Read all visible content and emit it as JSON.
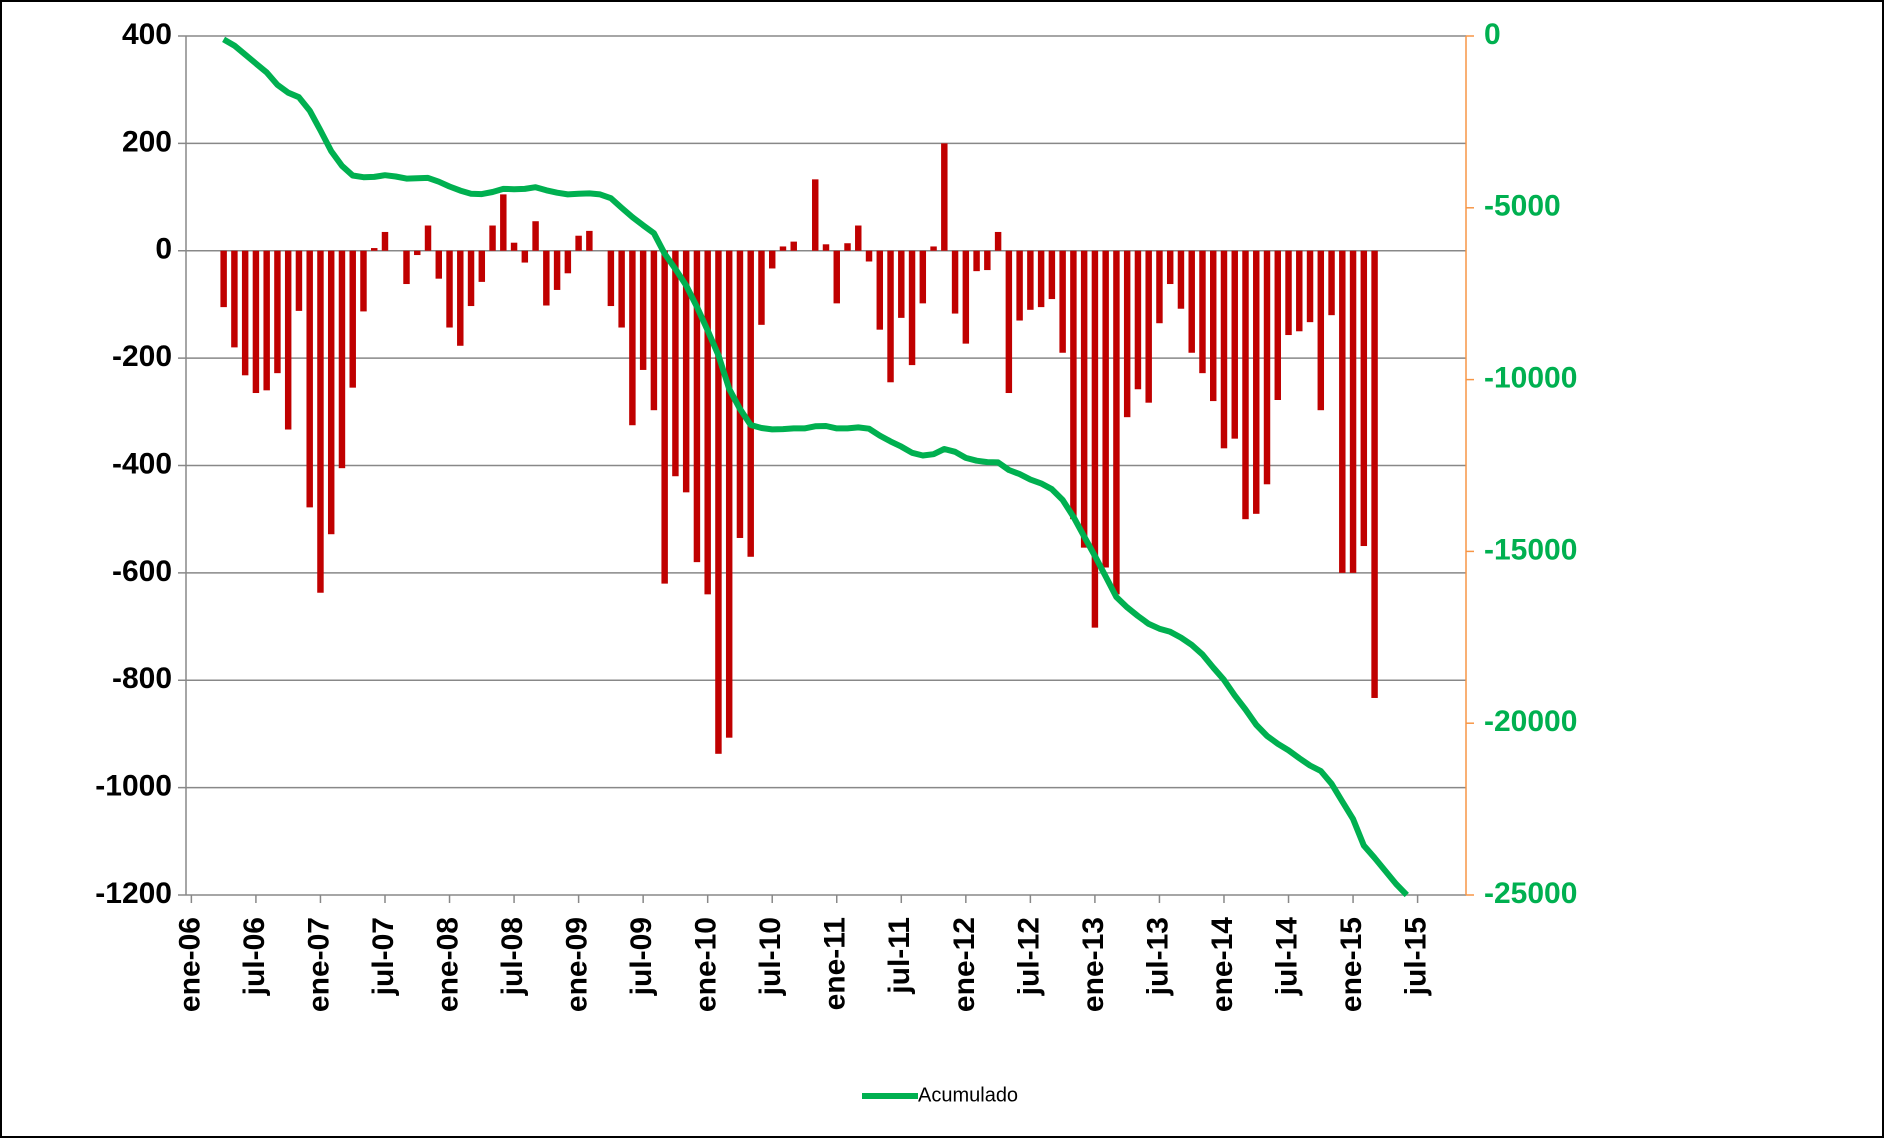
{
  "chart_data": {
    "type": "bar",
    "categories": [
      "ene-06",
      null,
      null,
      null,
      null,
      null,
      "jul-06",
      null,
      null,
      null,
      null,
      null,
      "ene-07",
      null,
      null,
      null,
      null,
      null,
      "jul-07",
      null,
      null,
      null,
      null,
      null,
      "ene-08",
      null,
      null,
      null,
      null,
      null,
      "jul-08",
      null,
      null,
      null,
      null,
      null,
      "ene-09",
      null,
      null,
      null,
      null,
      null,
      "jul-09",
      null,
      null,
      null,
      null,
      null,
      "ene-10",
      null,
      null,
      null,
      null,
      null,
      "jul-10",
      null,
      null,
      null,
      null,
      null,
      "ene-11",
      null,
      null,
      null,
      null,
      null,
      "jul-11",
      null,
      null,
      null,
      null,
      null,
      "ene-12",
      null,
      null,
      null,
      null,
      null,
      "jul-12",
      null,
      null,
      null,
      null,
      null,
      "ene-13",
      null,
      null,
      null,
      null,
      null,
      "jul-13",
      null,
      null,
      null,
      null,
      null,
      "ene-14",
      null,
      null,
      null,
      null,
      null,
      "jul-14",
      null,
      null,
      null,
      null,
      null,
      "ene-15",
      null,
      null,
      null,
      null,
      null,
      "jul-15",
      null,
      null,
      null,
      null
    ],
    "series": [
      {
        "type": "bar",
        "color": "#c00000",
        "values": [
          null,
          null,
          null,
          -105,
          -180,
          -232,
          -265,
          -260,
          -228,
          -333,
          -112,
          -478,
          -637,
          -528,
          -405,
          -255,
          -113,
          5,
          35,
          0,
          -62,
          -8,
          47,
          -52,
          -143,
          -177,
          -103,
          -58,
          47,
          105,
          15,
          -22,
          55,
          -102,
          -73,
          -42,
          28,
          37,
          0,
          -103,
          -143,
          -325,
          -222,
          -297,
          -620,
          -420,
          -450,
          -580,
          -640,
          -937,
          -907,
          -535,
          -570,
          -138,
          -33,
          8,
          17,
          0,
          133,
          12,
          -98,
          14,
          47,
          -20,
          -147,
          -245,
          -125,
          -213,
          -98,
          8,
          200,
          -117,
          -173,
          -38,
          -36,
          35,
          -265,
          -130,
          -110,
          -105,
          -90,
          -190,
          -500,
          -553,
          -702,
          -590,
          -640,
          -310,
          -258,
          -283,
          -135,
          -62,
          -108,
          -190,
          -228,
          -280,
          -368,
          -350,
          -500,
          -490,
          -435,
          -278,
          -157,
          -150,
          -133,
          -297,
          -120,
          -600,
          -600,
          -550,
          -833,
          null,
          null,
          null,
          null,
          null,
          null,
          null,
          null
        ]
      },
      {
        "type": "line",
        "name": "Acumulado",
        "color": "#00b050",
        "axis": "y2",
        "values": [
          null,
          null,
          null,
          -100,
          -280,
          -540,
          -800,
          -1060,
          -1420,
          -1650,
          -1780,
          -2170,
          -2750,
          -3350,
          -3780,
          -4060,
          -4110,
          -4100,
          -4050,
          -4090,
          -4150,
          -4140,
          -4130,
          -4240,
          -4380,
          -4500,
          -4590,
          -4600,
          -4540,
          -4450,
          -4460,
          -4450,
          -4400,
          -4490,
          -4560,
          -4610,
          -4590,
          -4580,
          -4610,
          -4720,
          -5000,
          -5270,
          -5510,
          -5740,
          -6340,
          -6780,
          -7260,
          -7880,
          -8570,
          -9290,
          -10270,
          -10850,
          -11320,
          -11410,
          -11450,
          -11440,
          -11420,
          -11420,
          -11360,
          -11350,
          -11420,
          -11420,
          -11390,
          -11430,
          -11630,
          -11800,
          -11950,
          -12130,
          -12210,
          -12170,
          -12020,
          -12100,
          -12280,
          -12360,
          -12400,
          -12410,
          -12630,
          -12750,
          -12910,
          -13020,
          -13190,
          -13500,
          -13990,
          -14570,
          -15130,
          -15730,
          -16330,
          -16630,
          -16880,
          -17110,
          -17250,
          -17340,
          -17510,
          -17720,
          -18000,
          -18380,
          -18740,
          -19190,
          -19600,
          -20050,
          -20370,
          -20600,
          -20790,
          -21020,
          -21230,
          -21390,
          -21760,
          -22280,
          -22790,
          -23560,
          -23920,
          -24300,
          -24680,
          -25000,
          null,
          null,
          null,
          null,
          null
        ]
      }
    ],
    "ylim": [
      -1200,
      400
    ],
    "yticks": [
      -1200,
      -1000,
      -800,
      -600,
      -400,
      -200,
      0,
      200,
      400
    ],
    "y2lim": [
      -25000,
      0
    ],
    "y2ticks": [
      -25000,
      -20000,
      -15000,
      -10000,
      -5000,
      0
    ],
    "grid": true,
    "legend": "bottom"
  }
}
